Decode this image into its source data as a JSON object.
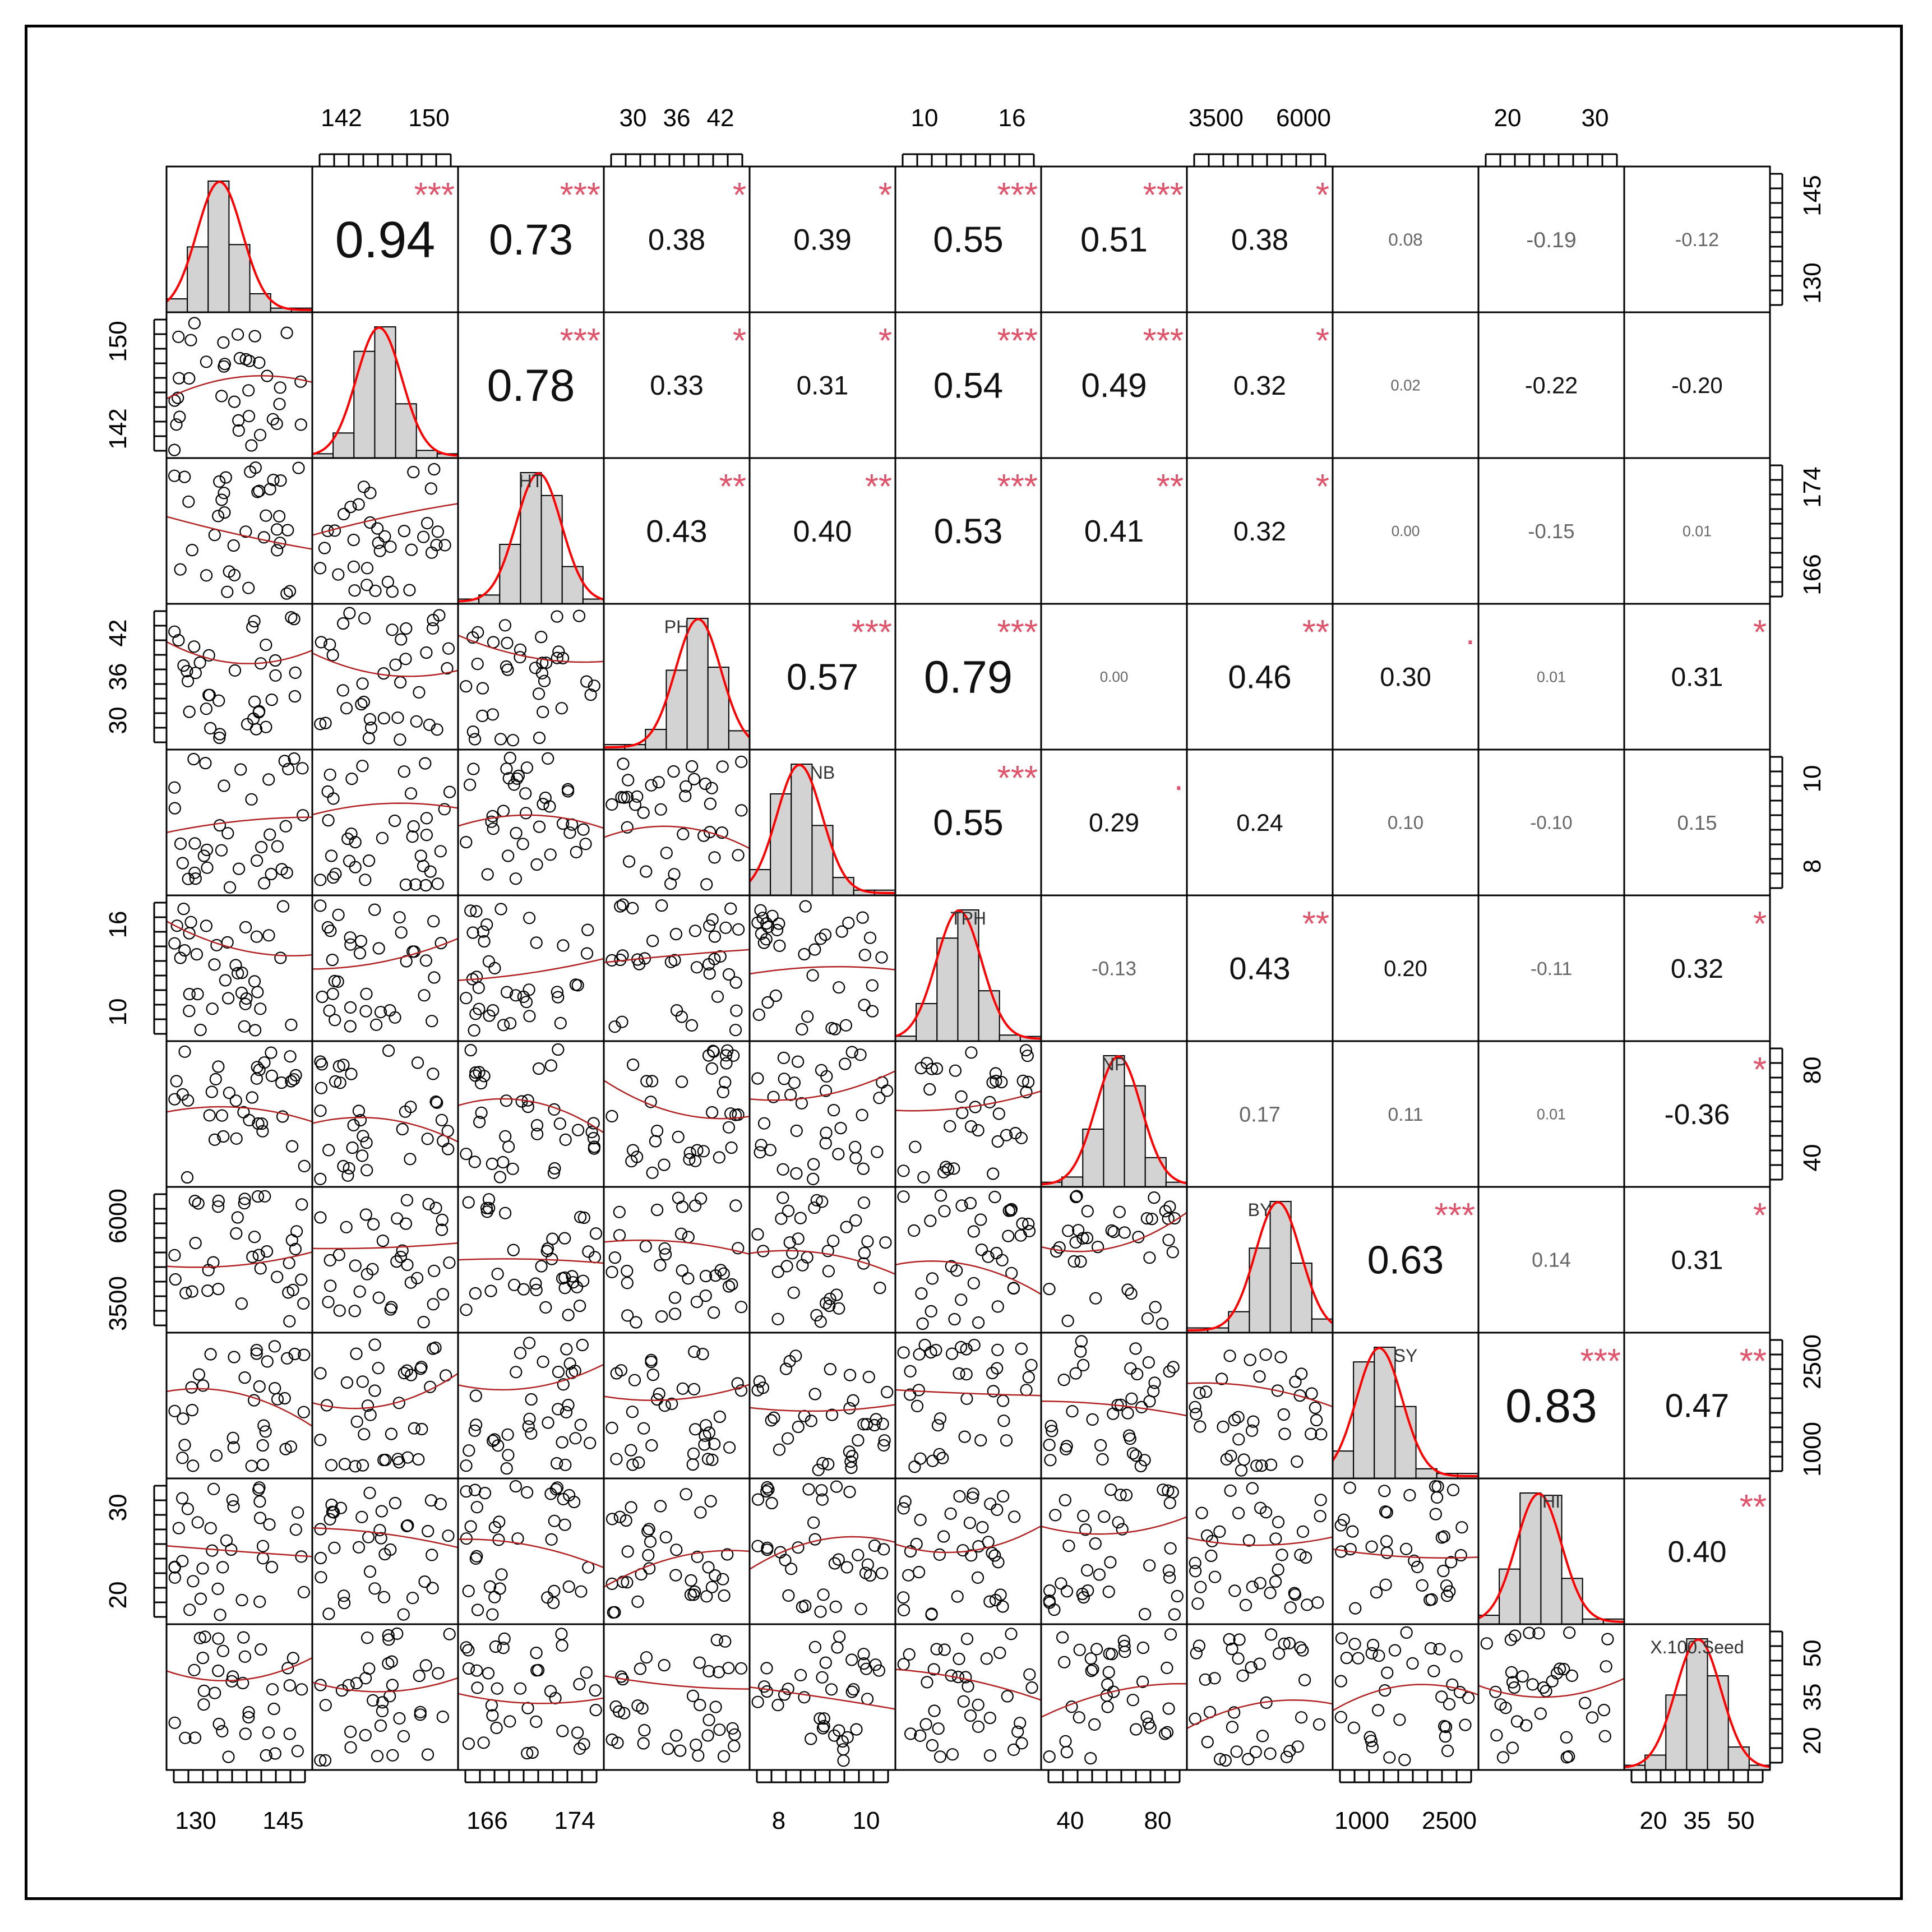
{
  "chart_data": {
    "type": "scatter",
    "title": "",
    "variables": [
      "",
      "",
      "HT",
      "PH",
      "NB",
      "TPH",
      "NP",
      "BY",
      "SY",
      "HI",
      "X.100.Seed"
    ],
    "correlations": [
      {
        "row": 0,
        "col": 1,
        "r": "0.94",
        "stars": "***"
      },
      {
        "row": 0,
        "col": 2,
        "r": "0.73",
        "stars": "***"
      },
      {
        "row": 0,
        "col": 3,
        "r": "0.38",
        "stars": "*"
      },
      {
        "row": 0,
        "col": 4,
        "r": "0.39",
        "stars": "*"
      },
      {
        "row": 0,
        "col": 5,
        "r": "0.55",
        "stars": "***"
      },
      {
        "row": 0,
        "col": 6,
        "r": "0.51",
        "stars": "***"
      },
      {
        "row": 0,
        "col": 7,
        "r": "0.38",
        "stars": "*"
      },
      {
        "row": 0,
        "col": 8,
        "r": "0.08",
        "stars": ""
      },
      {
        "row": 0,
        "col": 9,
        "r": "-0.19",
        "stars": ""
      },
      {
        "row": 0,
        "col": 10,
        "r": "-0.12",
        "stars": ""
      },
      {
        "row": 1,
        "col": 2,
        "r": "0.78",
        "stars": "***"
      },
      {
        "row": 1,
        "col": 3,
        "r": "0.33",
        "stars": "*"
      },
      {
        "row": 1,
        "col": 4,
        "r": "0.31",
        "stars": "*"
      },
      {
        "row": 1,
        "col": 5,
        "r": "0.54",
        "stars": "***"
      },
      {
        "row": 1,
        "col": 6,
        "r": "0.49",
        "stars": "***"
      },
      {
        "row": 1,
        "col": 7,
        "r": "0.32",
        "stars": "*"
      },
      {
        "row": 1,
        "col": 8,
        "r": "0.02",
        "stars": ""
      },
      {
        "row": 1,
        "col": 9,
        "r": "-0.22",
        "stars": ""
      },
      {
        "row": 1,
        "col": 10,
        "r": "-0.20",
        "stars": ""
      },
      {
        "row": 2,
        "col": 3,
        "r": "0.43",
        "stars": "**"
      },
      {
        "row": 2,
        "col": 4,
        "r": "0.40",
        "stars": "**"
      },
      {
        "row": 2,
        "col": 5,
        "r": "0.53",
        "stars": "***"
      },
      {
        "row": 2,
        "col": 6,
        "r": "0.41",
        "stars": "**"
      },
      {
        "row": 2,
        "col": 7,
        "r": "0.32",
        "stars": "*"
      },
      {
        "row": 2,
        "col": 8,
        "r": "0.00",
        "stars": ""
      },
      {
        "row": 2,
        "col": 9,
        "r": "-0.15",
        "stars": ""
      },
      {
        "row": 2,
        "col": 10,
        "r": "0.01",
        "stars": ""
      },
      {
        "row": 3,
        "col": 4,
        "r": "0.57",
        "stars": "***"
      },
      {
        "row": 3,
        "col": 5,
        "r": "0.79",
        "stars": "***"
      },
      {
        "row": 3,
        "col": 6,
        "r": "0.00",
        "stars": ""
      },
      {
        "row": 3,
        "col": 7,
        "r": "0.46",
        "stars": "**"
      },
      {
        "row": 3,
        "col": 8,
        "r": "0.30",
        "stars": "."
      },
      {
        "row": 3,
        "col": 9,
        "r": "0.01",
        "stars": ""
      },
      {
        "row": 3,
        "col": 10,
        "r": "0.31",
        "stars": "*"
      },
      {
        "row": 4,
        "col": 5,
        "r": "0.55",
        "stars": "***"
      },
      {
        "row": 4,
        "col": 6,
        "r": "0.29",
        "stars": "."
      },
      {
        "row": 4,
        "col": 7,
        "r": "0.24",
        "stars": ""
      },
      {
        "row": 4,
        "col": 8,
        "r": "0.10",
        "stars": ""
      },
      {
        "row": 4,
        "col": 9,
        "r": "-0.10",
        "stars": ""
      },
      {
        "row": 4,
        "col": 10,
        "r": "0.15",
        "stars": ""
      },
      {
        "row": 5,
        "col": 6,
        "r": "-0.13",
        "stars": ""
      },
      {
        "row": 5,
        "col": 7,
        "r": "0.43",
        "stars": "**"
      },
      {
        "row": 5,
        "col": 8,
        "r": "0.20",
        "stars": ""
      },
      {
        "row": 5,
        "col": 9,
        "r": "-0.11",
        "stars": ""
      },
      {
        "row": 5,
        "col": 10,
        "r": "0.32",
        "stars": "*"
      },
      {
        "row": 6,
        "col": 7,
        "r": "0.17",
        "stars": ""
      },
      {
        "row": 6,
        "col": 8,
        "r": "0.11",
        "stars": ""
      },
      {
        "row": 6,
        "col": 9,
        "r": "0.01",
        "stars": ""
      },
      {
        "row": 6,
        "col": 10,
        "r": "-0.36",
        "stars": "*"
      },
      {
        "row": 7,
        "col": 8,
        "r": "0.63",
        "stars": "***"
      },
      {
        "row": 7,
        "col": 9,
        "r": "0.14",
        "stars": ""
      },
      {
        "row": 7,
        "col": 10,
        "r": "0.31",
        "stars": "*"
      },
      {
        "row": 8,
        "col": 9,
        "r": "0.83",
        "stars": "***"
      },
      {
        "row": 8,
        "col": 10,
        "r": "0.47",
        "stars": "**"
      },
      {
        "row": 9,
        "col": 10,
        "r": "0.40",
        "stars": "**"
      }
    ],
    "ticks": {
      "top": [
        {
          "col": 1,
          "labels": [
            "142",
            "150"
          ]
        },
        {
          "col": 3,
          "labels": [
            "30",
            "36",
            "42"
          ]
        },
        {
          "col": 5,
          "labels": [
            "10",
            "16"
          ]
        },
        {
          "col": 7,
          "labels": [
            "3500",
            "6000"
          ]
        },
        {
          "col": 9,
          "labels": [
            "20",
            "30"
          ]
        }
      ],
      "bottom": [
        {
          "col": 0,
          "labels": [
            "130",
            "145"
          ]
        },
        {
          "col": 2,
          "labels": [
            "166",
            "174"
          ]
        },
        {
          "col": 4,
          "labels": [
            "8",
            "10"
          ]
        },
        {
          "col": 6,
          "labels": [
            "40",
            "80"
          ]
        },
        {
          "col": 8,
          "labels": [
            "1000",
            "2500"
          ]
        },
        {
          "col": 10,
          "labels": [
            "20",
            "35",
            "50"
          ]
        }
      ],
      "left": [
        {
          "row": 1,
          "labels": [
            "142",
            "150"
          ]
        },
        {
          "row": 3,
          "labels": [
            "30",
            "36",
            "42"
          ]
        },
        {
          "row": 5,
          "labels": [
            "10",
            "16"
          ]
        },
        {
          "row": 7,
          "labels": [
            "3500",
            "6000"
          ]
        },
        {
          "row": 9,
          "labels": [
            "20",
            "30"
          ]
        }
      ],
      "right": [
        {
          "row": 0,
          "labels": [
            "130",
            "145"
          ]
        },
        {
          "row": 2,
          "labels": [
            "166",
            "174"
          ]
        },
        {
          "row": 4,
          "labels": [
            "8",
            "10"
          ]
        },
        {
          "row": 6,
          "labels": [
            "40",
            "80"
          ]
        },
        {
          "row": 8,
          "labels": [
            "1000",
            "2500"
          ]
        },
        {
          "row": 10,
          "labels": [
            "20",
            "35",
            "50"
          ]
        }
      ]
    },
    "significance_color": "#DF536B",
    "smooth_color": "#B22222",
    "density_color": "#FF0000",
    "histogram_fill": "#D3D3D3"
  }
}
